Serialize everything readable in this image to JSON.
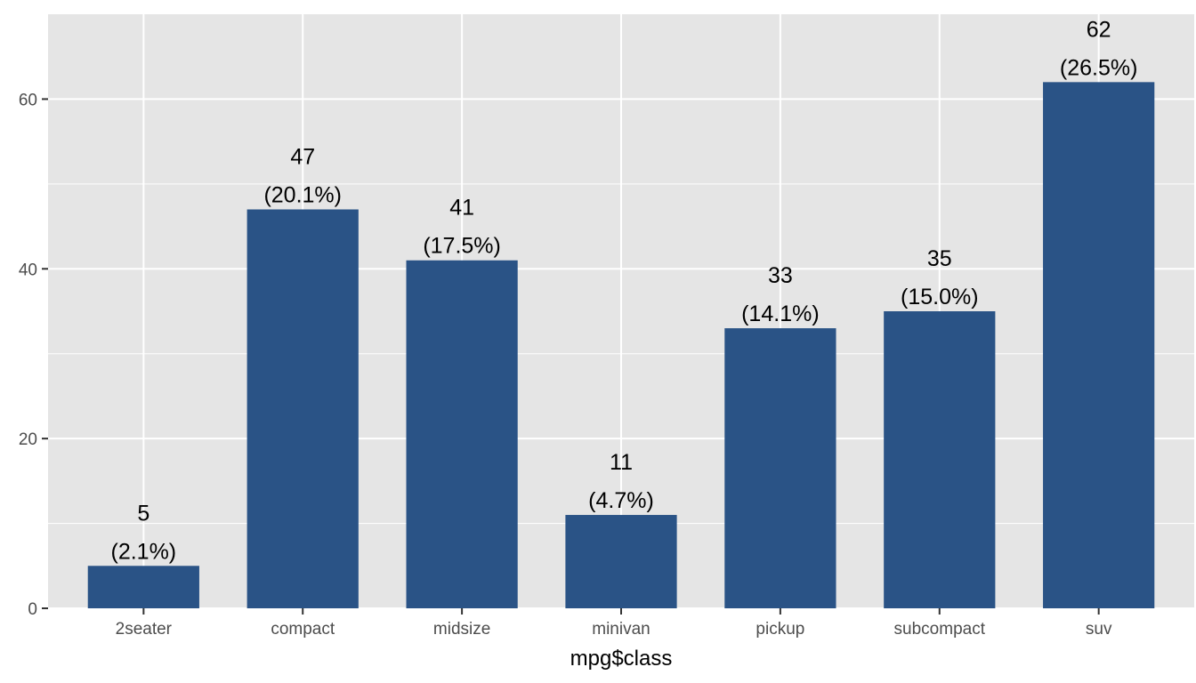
{
  "chart_data": {
    "type": "bar",
    "title": "",
    "xlabel": "mpg$class",
    "ylabel": "",
    "categories": [
      "2seater",
      "compact",
      "midsize",
      "minivan",
      "pickup",
      "subcompact",
      "suv"
    ],
    "values": [
      5,
      47,
      41,
      11,
      33,
      35,
      62
    ],
    "value_labels": [
      "5",
      "47",
      "41",
      "11",
      "33",
      "35",
      "62"
    ],
    "percent_labels": [
      "(2.1%)",
      "(20.1%)",
      "(17.5%)",
      "(4.7%)",
      "(14.1%)",
      "(15.0%)",
      "(26.5%)"
    ],
    "ylim": [
      0,
      70
    ],
    "yticks": [
      0,
      20,
      40,
      60
    ],
    "ytick_labels": [
      "0",
      "20",
      "40",
      "60"
    ],
    "grid": true,
    "legend": "none",
    "colors": {
      "bar": "#2A5386",
      "panel_background": "#E5E5E5",
      "grid": "#FFFFFF",
      "tick_text": "#4D4D4D",
      "tick_mark": "#333333",
      "label_text": "#000000"
    }
  }
}
